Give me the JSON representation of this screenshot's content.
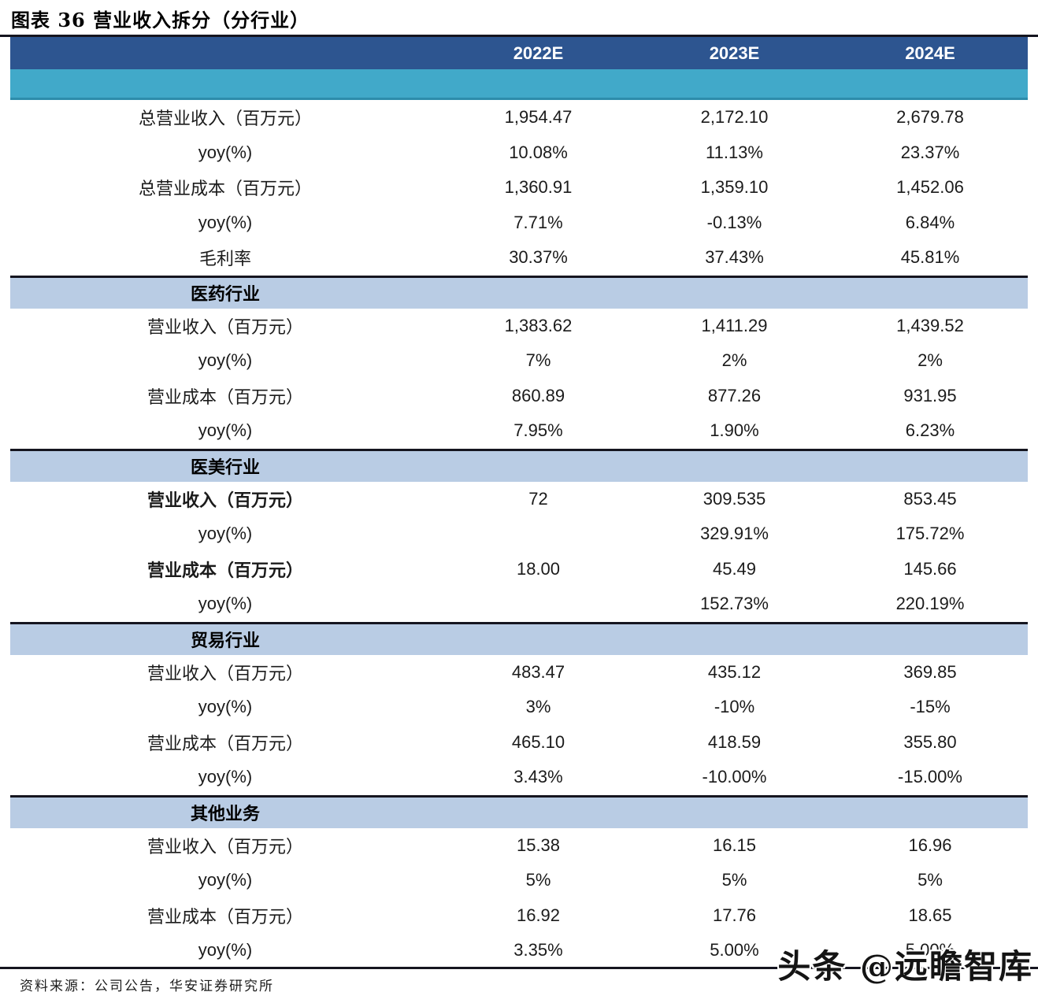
{
  "title": "图表 36 营业收入拆分（分行业）",
  "columns": [
    "2022E",
    "2023E",
    "2024E"
  ],
  "colors": {
    "header_bg": "#2d5590",
    "subheader_bg": "#41a9c9",
    "section_bg": "#b9cce4",
    "rule": "#15151f",
    "header_text": "#ffffff",
    "body_text": "#1b1b1b"
  },
  "sections": [
    {
      "header": null,
      "rows": [
        {
          "label": "总营业收入（百万元）",
          "bold": false,
          "values": [
            "1,954.47",
            "2,172.10",
            "2,679.78"
          ]
        },
        {
          "label": "yoy(%)",
          "bold": false,
          "values": [
            "10.08%",
            "11.13%",
            "23.37%"
          ]
        },
        {
          "label": "总营业成本（百万元）",
          "bold": false,
          "values": [
            "1,360.91",
            "1,359.10",
            "1,452.06"
          ]
        },
        {
          "label": "yoy(%)",
          "bold": false,
          "values": [
            "7.71%",
            "-0.13%",
            "6.84%"
          ]
        },
        {
          "label": "毛利率",
          "bold": false,
          "values": [
            "30.37%",
            "37.43%",
            "45.81%"
          ]
        }
      ]
    },
    {
      "header": "医药行业",
      "rows": [
        {
          "label": "营业收入（百万元）",
          "bold": false,
          "values": [
            "1,383.62",
            "1,411.29",
            "1,439.52"
          ]
        },
        {
          "label": "yoy(%)",
          "bold": false,
          "values": [
            "7%",
            "2%",
            "2%"
          ]
        },
        {
          "label": "营业成本（百万元）",
          "bold": false,
          "values": [
            "860.89",
            "877.26",
            "931.95"
          ]
        },
        {
          "label": "yoy(%)",
          "bold": false,
          "values": [
            "7.95%",
            "1.90%",
            "6.23%"
          ]
        }
      ]
    },
    {
      "header": "医美行业",
      "rows": [
        {
          "label": "营业收入（百万元）",
          "bold": true,
          "values": [
            "72",
            "309.535",
            "853.45"
          ]
        },
        {
          "label": "yoy(%)",
          "bold": false,
          "values": [
            "",
            "329.91%",
            "175.72%"
          ]
        },
        {
          "label": "营业成本（百万元）",
          "bold": true,
          "values": [
            "18.00",
            "45.49",
            "145.66"
          ]
        },
        {
          "label": "yoy(%)",
          "bold": false,
          "values": [
            "",
            "152.73%",
            "220.19%"
          ]
        }
      ]
    },
    {
      "header": "贸易行业",
      "rows": [
        {
          "label": "营业收入（百万元）",
          "bold": false,
          "values": [
            "483.47",
            "435.12",
            "369.85"
          ]
        },
        {
          "label": "yoy(%)",
          "bold": false,
          "values": [
            "3%",
            "-10%",
            "-15%"
          ]
        },
        {
          "label": "营业成本（百万元）",
          "bold": false,
          "values": [
            "465.10",
            "418.59",
            "355.80"
          ]
        },
        {
          "label": "yoy(%)",
          "bold": false,
          "values": [
            "3.43%",
            "-10.00%",
            "-15.00%"
          ]
        }
      ]
    },
    {
      "header": "其他业务",
      "rows": [
        {
          "label": "营业收入（百万元）",
          "bold": false,
          "values": [
            "15.38",
            "16.15",
            "16.96"
          ]
        },
        {
          "label": "yoy(%)",
          "bold": false,
          "values": [
            "5%",
            "5%",
            "5%"
          ]
        },
        {
          "label": "营业成本（百万元）",
          "bold": false,
          "values": [
            "16.92",
            "17.76",
            "18.65"
          ]
        },
        {
          "label": "yoy(%)",
          "bold": false,
          "values": [
            "3.35%",
            "5.00%",
            "5.00%"
          ]
        }
      ]
    }
  ],
  "footer": {
    "source": "资料来源：公司公告，华安证券研究所"
  },
  "watermark": "头条 @远瞻智库"
}
